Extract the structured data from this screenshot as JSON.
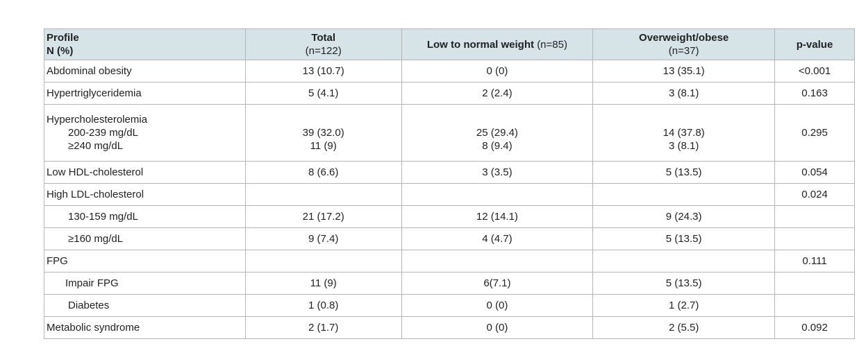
{
  "header": {
    "profile": "Profile",
    "profile_sub": "N (%)",
    "total": "Total",
    "total_n": "(n=122)",
    "low_normal": "Low to normal weight",
    "low_normal_n": "(n=85)",
    "overweight": "Overweight/obese",
    "overweight_n": "(n=37)",
    "pvalue": "p-value"
  },
  "rows": {
    "abdominal": {
      "label": "Abdominal obesity",
      "total": "13 (10.7)",
      "low": "0 (0)",
      "over": "13 (35.1)",
      "p": "<0.001"
    },
    "hypertrig": {
      "label": "Hypertriglyceridemia",
      "total": "5 (4.1)",
      "low": "2 (2.4)",
      "over": "3 (8.1)",
      "p": "0.163"
    },
    "hyperchol": {
      "label": "Hypercholesterolemia",
      "sub1": "200-239 mg/dL",
      "sub2": "≥240 mg/dL",
      "total1": "39 (32.0)",
      "total2": "11 (9)",
      "low1": "25 (29.4)",
      "low2": "8 (9.4)",
      "over1": "14 (37.8)",
      "over2": "3 (8.1)",
      "p": "0.295"
    },
    "lowhdl": {
      "label": "Low HDL-cholesterol",
      "total": "8 (6.6)",
      "low": "3 (3.5)",
      "over": "5 (13.5)",
      "p": "0.054"
    },
    "highldl": {
      "label": "High LDL-cholesterol",
      "p": "0.024"
    },
    "ldl1": {
      "label": "130-159 mg/dL",
      "total": "21 (17.2)",
      "low": "12 (14.1)",
      "over": "9 (24.3)"
    },
    "ldl2": {
      "label": "≥160 mg/dL",
      "total": "9 (7.4)",
      "low": "4 (4.7)",
      "over": "5 (13.5)"
    },
    "fpg": {
      "label": "FPG",
      "p": "0.111"
    },
    "impair": {
      "label": "Impair FPG",
      "total": "11 (9)",
      "low": "6(7.1)",
      "over": "5 (13.5)"
    },
    "diabetes": {
      "label": "Diabetes",
      "total": "1 (0.8)",
      "low": "0 (0)",
      "over": "1 (2.7)"
    },
    "metabolic": {
      "label": "Metabolic syndrome",
      "total": "2 (1.7)",
      "low": "0 (0)",
      "over": "2 (5.5)",
      "p": "0.092"
    }
  },
  "colors": {
    "header_bg": "#d7e4e7",
    "border": "#b5b5b5"
  }
}
